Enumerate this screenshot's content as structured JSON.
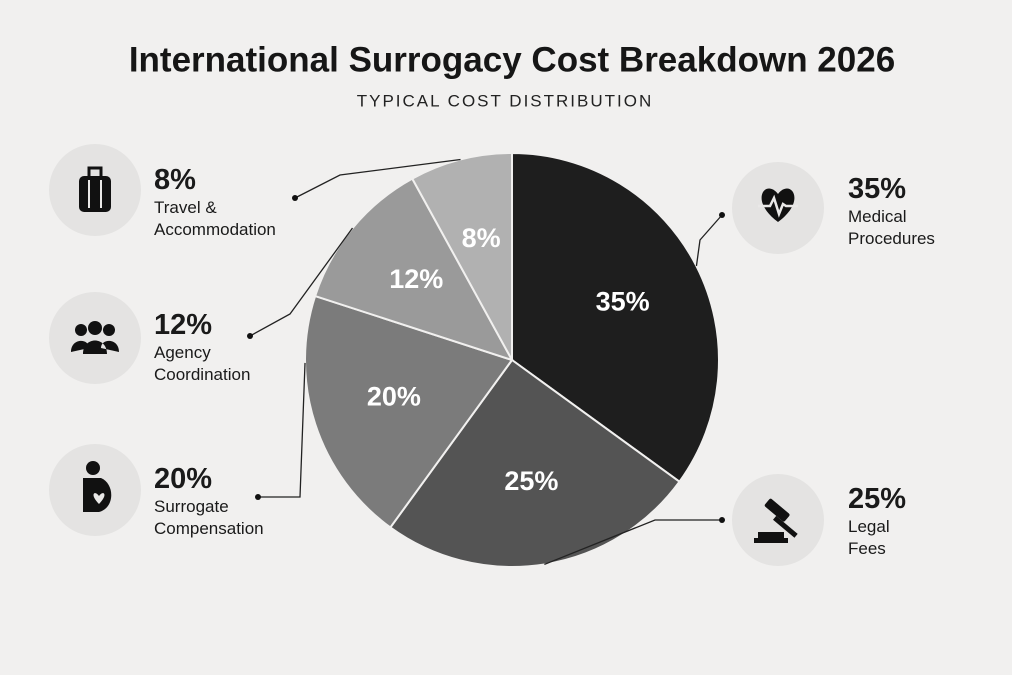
{
  "chart_data": {
    "type": "pie",
    "title": "International Surrogacy Cost Breakdown 2026",
    "subtitle": "TYPICAL COST DISTRIBUTION",
    "categories": [
      "Medical Procedures",
      "Legal Fees",
      "Surrogate Compensation",
      "Agency Coordination",
      "Travel & Accommodation"
    ],
    "values": [
      35,
      25,
      20,
      12,
      8
    ],
    "value_labels": [
      "35%",
      "25%",
      "20%",
      "12%",
      "8%"
    ],
    "colors": [
      "#1e1e1e",
      "#545454",
      "#7b7b7b",
      "#9a9a9a",
      "#b1b1b1"
    ]
  }
}
